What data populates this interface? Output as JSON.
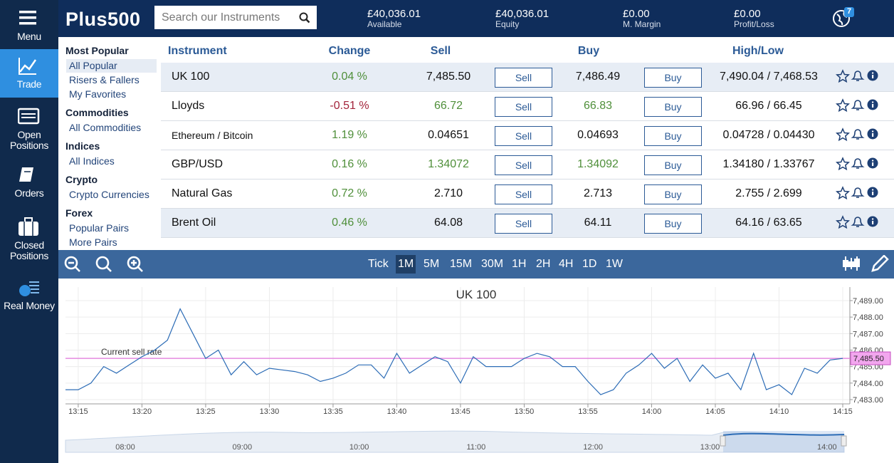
{
  "sidebar": [
    {
      "label": "Menu"
    },
    {
      "label": "Trade",
      "active": true
    },
    {
      "label": "Open Positions"
    },
    {
      "label": "Orders"
    },
    {
      "label": "Closed Positions"
    },
    {
      "label": "Real Money"
    }
  ],
  "header": {
    "logo": "Plus500",
    "search_placeholder": "Search our Instruments",
    "stats": [
      {
        "value": "£40,036.01",
        "label": "Available"
      },
      {
        "value": "£40,036.01",
        "label": "Equity"
      },
      {
        "value": "£0.00",
        "label": "M. Margin"
      },
      {
        "value": "£0.00",
        "label": "Profit/Loss"
      }
    ],
    "notification_count": "7"
  },
  "menu": [
    {
      "title": "Most Popular",
      "items": [
        "All Popular",
        "Risers & Fallers",
        "My Favorites"
      ],
      "selected": 0
    },
    {
      "title": "Commodities",
      "items": [
        "All Commodities"
      ]
    },
    {
      "title": "Indices",
      "items": [
        "All Indices"
      ]
    },
    {
      "title": "Crypto",
      "items": [
        "Crypto Currencies"
      ]
    },
    {
      "title": "Forex",
      "items": [
        "Popular Pairs",
        "More Pairs"
      ]
    }
  ],
  "table": {
    "columns": [
      "Instrument",
      "Change",
      "Sell",
      "Buy",
      "High/Low"
    ],
    "sell_button": "Sell",
    "buy_button": "Buy",
    "rows": [
      {
        "instrument": "UK 100",
        "change": "0.04 %",
        "sell": "7,485.50",
        "buy": "7,486.49",
        "high_low": "7,490.04 / 7,468.53",
        "change_color": "#4f8f3a",
        "highlighted": true
      },
      {
        "instrument": "Lloyds",
        "change": "-0.51 %",
        "sell": "66.72",
        "buy": "66.83",
        "high_low": "66.96 / 66.45",
        "change_color": "#a3243b",
        "price_color": "#4f8f3a"
      },
      {
        "instrument": "Ethereum / Bitcoin",
        "change": "1.19 %",
        "sell": "0.04651",
        "buy": "0.04693",
        "high_low": "0.04728 / 0.04430",
        "change_color": "#4f8f3a",
        "small": true
      },
      {
        "instrument": "GBP/USD",
        "change": "0.16 %",
        "sell": "1.34072",
        "buy": "1.34092",
        "high_low": "1.34180 / 1.33767",
        "change_color": "#4f8f3a",
        "price_color": "#4f8f3a"
      },
      {
        "instrument": "Natural Gas",
        "change": "0.72 %",
        "sell": "2.710",
        "buy": "2.713",
        "high_low": "2.755 / 2.699",
        "change_color": "#4f8f3a"
      },
      {
        "instrument": "Brent Oil",
        "change": "0.46 %",
        "sell": "64.08",
        "buy": "64.11",
        "high_low": "64.16 / 63.65",
        "change_color": "#4f8f3a",
        "highlighted": true
      }
    ]
  },
  "toolbar": {
    "timeframes": [
      "Tick",
      "1M",
      "5M",
      "15M",
      "30M",
      "1H",
      "2H",
      "4H",
      "1D",
      "1W"
    ],
    "active": 1
  },
  "chart_data": {
    "type": "line",
    "title": "UK 100",
    "color": "#2c6cb6",
    "x": [
      "13:14",
      "13:15",
      "13:16",
      "13:17",
      "13:18",
      "13:19",
      "13:20",
      "13:21",
      "13:22",
      "13:23",
      "13:24",
      "13:25",
      "13:26",
      "13:27",
      "13:28",
      "13:29",
      "13:30",
      "13:31",
      "13:32",
      "13:33",
      "13:34",
      "13:35",
      "13:36",
      "13:37",
      "13:38",
      "13:39",
      "13:40",
      "13:41",
      "13:42",
      "13:43",
      "13:44",
      "13:45",
      "13:46",
      "13:47",
      "13:48",
      "13:49",
      "13:50",
      "13:51",
      "13:52",
      "13:53",
      "13:54",
      "13:55",
      "13:56",
      "13:57",
      "13:58",
      "13:59",
      "14:00",
      "14:01",
      "14:02",
      "14:03",
      "14:04",
      "14:05",
      "14:06",
      "14:07",
      "14:08",
      "14:09",
      "14:10",
      "14:11",
      "14:12",
      "14:13",
      "14:14",
      "14:15"
    ],
    "values": [
      7483.6,
      7483.6,
      7484.0,
      7485.0,
      7484.6,
      7485.1,
      7485.6,
      7486.0,
      7486.6,
      7488.5,
      7487.0,
      7485.5,
      7486.0,
      7484.5,
      7485.3,
      7484.5,
      7484.9,
      7484.8,
      7484.7,
      7484.5,
      7484.1,
      7484.3,
      7484.6,
      7485.1,
      7485.1,
      7484.3,
      7485.8,
      7484.6,
      7485.1,
      7485.6,
      7485.3,
      7484.0,
      7485.6,
      7485.0,
      7485.0,
      7485.0,
      7485.5,
      7485.8,
      7485.6,
      7485.0,
      7485.0,
      7484.1,
      7483.3,
      7483.6,
      7484.6,
      7485.1,
      7485.8,
      7484.9,
      7485.5,
      7484.1,
      7485.1,
      7484.3,
      7484.6,
      7483.6,
      7485.8,
      7483.6,
      7483.9,
      7483.3,
      7484.9,
      7484.6,
      7485.4,
      7485.5
    ],
    "xlim": [
      "13:14",
      "14:15"
    ],
    "xticks": [
      "13:15",
      "13:20",
      "13:25",
      "13:30",
      "13:35",
      "13:40",
      "13:45",
      "13:50",
      "13:55",
      "14:00",
      "14:05",
      "14:10",
      "14:15"
    ],
    "ylim": [
      7482.74,
      7489.82
    ],
    "yticks": [
      {
        "value": 7483,
        "label": "7,483.00"
      },
      {
        "value": 7484,
        "label": "7,484.00"
      },
      {
        "value": 7485,
        "label": "7,485.00"
      },
      {
        "value": 7486,
        "label": "7,486.00"
      },
      {
        "value": 7487,
        "label": "7,487.00"
      },
      {
        "value": 7488,
        "label": "7,488.00"
      },
      {
        "value": 7489,
        "label": "7,489.00"
      }
    ],
    "grid": true,
    "reference_line": {
      "label": "Current sell rate",
      "value": 7485.5,
      "value_label": "7,485.50",
      "color": "#e58ae0"
    }
  },
  "navigator": {
    "xticks": [
      "08:00",
      "09:00",
      "10:00",
      "11:00",
      "12:00",
      "13:00",
      "14:00"
    ]
  }
}
